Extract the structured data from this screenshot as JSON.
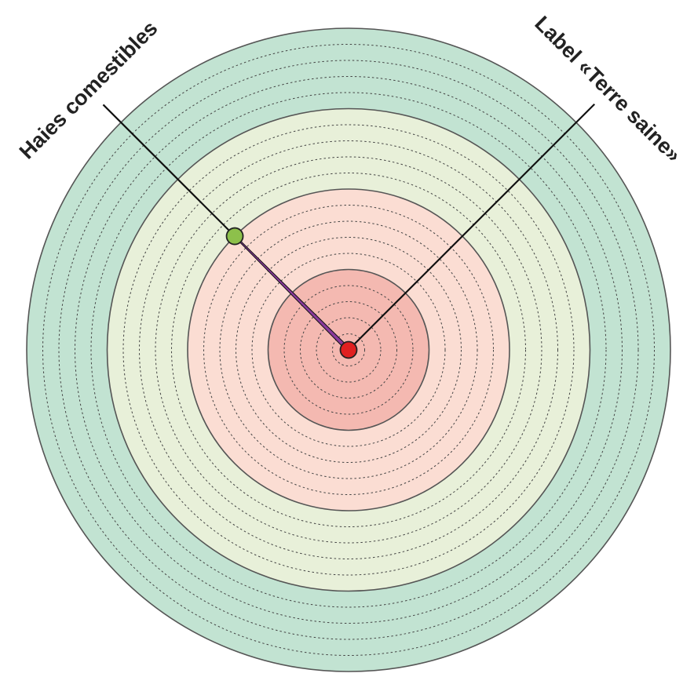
{
  "chart_data": {
    "type": "radial-progress",
    "title": "",
    "rings": [
      {
        "fill": "#f4b9b1"
      },
      {
        "fill": "#fbddd3"
      },
      {
        "fill": "#e8f0d9"
      },
      {
        "fill": "#c2e3d2"
      }
    ],
    "series": [
      {
        "name": "Haies comestibles",
        "angle_deg": -45,
        "value": 0.5,
        "marker_color": "#8dc04b",
        "bar_color": "#8b3a9b"
      },
      {
        "name": "Label «Terre saine»",
        "angle_deg": 45,
        "value": 0,
        "marker_color": "#e02020",
        "bar_color": "#8b3a9b"
      }
    ],
    "scale": {
      "min": 0,
      "max": 1,
      "minor_steps_per_ring": 5
    },
    "grid": true,
    "legend": "none"
  },
  "labels": {
    "left": "Haies comestibles",
    "right": "Label «Terre saine»"
  }
}
